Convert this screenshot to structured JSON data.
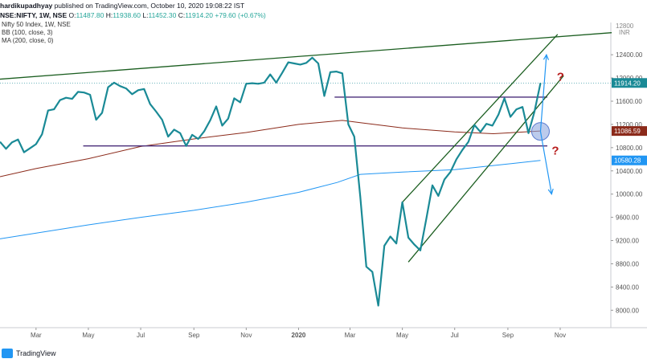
{
  "header": {
    "author": "hardikupadhyay",
    "published": "published on TradingView.com, October 10, 2020 19:08:22 IST",
    "symbol": "NSE:NIFTY, 1W, NSE",
    "ohlc_o_label": "O:",
    "ohlc_o": "11487.80",
    "ohlc_h_label": "H:",
    "ohlc_h": "11938.60",
    "ohlc_l_label": "L:",
    "ohlc_l": "11452.30",
    "ohlc_c_label": "C:",
    "ohlc_c": "11914.20",
    "ohlc_change": "+79.60 (+0.67%)",
    "legend_title": "Nifty 50 Index, 1W, NSE",
    "legend_bb": "BB (100, close, 3)",
    "legend_ma": "MA (200, close, 0)"
  },
  "footer": {
    "logo_text": "TradingView"
  },
  "colors": {
    "price": "#1a8a96",
    "ma": "#2196f3",
    "bb_basis": "#8b2a1a",
    "channel": "#1b5e20",
    "support": "#4a2e7a",
    "arrow": "#2196f3",
    "question": "#b71c1c",
    "highlight": "#8fa9e0"
  },
  "chart_data": {
    "type": "line",
    "title": "",
    "currency": "INR",
    "y_axis": {
      "ticks": [
        8000,
        8400,
        8800,
        9200,
        9600,
        10000,
        10400,
        10800,
        11200,
        11600,
        12000,
        12400
      ],
      "tick_labels": [
        "8000.00",
        "8400.00",
        "8800.00",
        "9200.00",
        "9600.00",
        "10000.00",
        "10400.00",
        "10800.00",
        "11200.00",
        "11600.00",
        "12000.00",
        "12400.00"
      ],
      "ylim": [
        7700,
        12900
      ],
      "top_partial_label": "12800"
    },
    "x_axis": {
      "labels": [
        {
          "label": "Mar",
          "date": "2019-03-01"
        },
        {
          "label": "May",
          "date": "2019-05-01"
        },
        {
          "label": "Jul",
          "date": "2019-07-01"
        },
        {
          "label": "Sep",
          "date": "2019-09-01"
        },
        {
          "label": "Nov",
          "date": "2019-11-01"
        },
        {
          "label": "2020",
          "date": "2020-01-01"
        },
        {
          "label": "Mar",
          "date": "2020-03-01"
        },
        {
          "label": "May",
          "date": "2020-05-01"
        },
        {
          "label": "Jul",
          "date": "2020-07-01"
        },
        {
          "label": "Sep",
          "date": "2020-09-01"
        },
        {
          "label": "Nov",
          "date": "2020-11-01"
        }
      ],
      "start": "2019-01-18",
      "end": "2020-12-30"
    },
    "price_labels": [
      {
        "value": 11914.2,
        "text": "11914.20",
        "color": "#1a8a96"
      },
      {
        "value": 11086.59,
        "text": "11086.59",
        "color": "#8b2a1a"
      },
      {
        "value": 10580.28,
        "text": "10580.28",
        "color": "#2196f3"
      }
    ],
    "series": [
      {
        "kind": "price",
        "points": [
          [
            "2019-01-18",
            10900
          ],
          [
            "2019-01-25",
            10780
          ],
          [
            "2019-02-01",
            10890
          ],
          [
            "2019-02-08",
            10940
          ],
          [
            "2019-02-15",
            10720
          ],
          [
            "2019-02-22",
            10790
          ],
          [
            "2019-03-01",
            10860
          ],
          [
            "2019-03-08",
            11030
          ],
          [
            "2019-03-15",
            11440
          ],
          [
            "2019-03-22",
            11460
          ],
          [
            "2019-03-29",
            11620
          ],
          [
            "2019-04-05",
            11660
          ],
          [
            "2019-04-12",
            11640
          ],
          [
            "2019-04-19",
            11760
          ],
          [
            "2019-04-26",
            11750
          ],
          [
            "2019-05-03",
            11710
          ],
          [
            "2019-05-10",
            11280
          ],
          [
            "2019-05-17",
            11400
          ],
          [
            "2019-05-24",
            11840
          ],
          [
            "2019-05-31",
            11920
          ],
          [
            "2019-06-07",
            11860
          ],
          [
            "2019-06-14",
            11820
          ],
          [
            "2019-06-21",
            11720
          ],
          [
            "2019-06-28",
            11790
          ],
          [
            "2019-07-05",
            11810
          ],
          [
            "2019-07-12",
            11550
          ],
          [
            "2019-07-19",
            11420
          ],
          [
            "2019-07-26",
            11280
          ],
          [
            "2019-08-02",
            10990
          ],
          [
            "2019-08-09",
            11110
          ],
          [
            "2019-08-16",
            11050
          ],
          [
            "2019-08-23",
            10830
          ],
          [
            "2019-08-30",
            11020
          ],
          [
            "2019-09-06",
            10950
          ],
          [
            "2019-09-13",
            11080
          ],
          [
            "2019-09-20",
            11270
          ],
          [
            "2019-09-27",
            11510
          ],
          [
            "2019-10-04",
            11180
          ],
          [
            "2019-10-11",
            11300
          ],
          [
            "2019-10-18",
            11650
          ],
          [
            "2019-10-25",
            11580
          ],
          [
            "2019-11-01",
            11900
          ],
          [
            "2019-11-08",
            11910
          ],
          [
            "2019-11-15",
            11900
          ],
          [
            "2019-11-22",
            11920
          ],
          [
            "2019-11-29",
            12060
          ],
          [
            "2019-12-06",
            11920
          ],
          [
            "2019-12-13",
            12090
          ],
          [
            "2019-12-20",
            12270
          ],
          [
            "2019-12-27",
            12250
          ],
          [
            "2020-01-03",
            12230
          ],
          [
            "2020-01-10",
            12260
          ],
          [
            "2020-01-17",
            12350
          ],
          [
            "2020-01-24",
            12250
          ],
          [
            "2020-01-31",
            11690
          ],
          [
            "2020-02-07",
            12100
          ],
          [
            "2020-02-14",
            12110
          ],
          [
            "2020-02-21",
            12080
          ],
          [
            "2020-02-28",
            11200
          ],
          [
            "2020-03-06",
            10990
          ],
          [
            "2020-03-13",
            9950
          ],
          [
            "2020-03-20",
            8750
          ],
          [
            "2020-03-27",
            8660
          ],
          [
            "2020-04-03",
            8080
          ],
          [
            "2020-04-10",
            9110
          ],
          [
            "2020-04-17",
            9270
          ],
          [
            "2020-04-24",
            9150
          ],
          [
            "2020-05-01",
            9860
          ],
          [
            "2020-05-08",
            9250
          ],
          [
            "2020-05-15",
            9130
          ],
          [
            "2020-05-22",
            9030
          ],
          [
            "2020-05-29",
            9580
          ],
          [
            "2020-06-05",
            10150
          ],
          [
            "2020-06-12",
            9970
          ],
          [
            "2020-06-19",
            10250
          ],
          [
            "2020-06-26",
            10380
          ],
          [
            "2020-07-03",
            10600
          ],
          [
            "2020-07-10",
            10760
          ],
          [
            "2020-07-17",
            10900
          ],
          [
            "2020-07-24",
            11190
          ],
          [
            "2020-07-31",
            11070
          ],
          [
            "2020-08-07",
            11210
          ],
          [
            "2020-08-14",
            11180
          ],
          [
            "2020-08-21",
            11370
          ],
          [
            "2020-08-28",
            11650
          ],
          [
            "2020-09-04",
            11330
          ],
          [
            "2020-09-11",
            11460
          ],
          [
            "2020-09-18",
            11500
          ],
          [
            "2020-09-25",
            11050
          ],
          [
            "2020-10-02",
            11420
          ],
          [
            "2020-10-09",
            11914
          ]
        ]
      },
      {
        "kind": "bb_basis",
        "points": [
          [
            "2019-01-18",
            10300
          ],
          [
            "2019-03-01",
            10440
          ],
          [
            "2019-05-01",
            10610
          ],
          [
            "2019-07-01",
            10820
          ],
          [
            "2019-09-01",
            10950
          ],
          [
            "2019-11-01",
            11060
          ],
          [
            "2020-01-01",
            11200
          ],
          [
            "2020-02-21",
            11270
          ],
          [
            "2020-03-13",
            11230
          ],
          [
            "2020-05-01",
            11140
          ],
          [
            "2020-07-01",
            11070
          ],
          [
            "2020-08-15",
            11040
          ],
          [
            "2020-10-09",
            11087
          ]
        ]
      },
      {
        "kind": "ma",
        "points": [
          [
            "2019-01-18",
            9230
          ],
          [
            "2019-05-01",
            9470
          ],
          [
            "2019-07-01",
            9600
          ],
          [
            "2019-09-01",
            9720
          ],
          [
            "2019-11-01",
            9860
          ],
          [
            "2020-01-01",
            10030
          ],
          [
            "2020-02-15",
            10200
          ],
          [
            "2020-03-13",
            10340
          ],
          [
            "2020-05-01",
            10380
          ],
          [
            "2020-07-01",
            10420
          ],
          [
            "2020-10-09",
            10580
          ]
        ]
      }
    ],
    "drawings": {
      "trendline": [
        [
          "2019-01-01",
          11960
        ],
        [
          "2020-12-31",
          12780
        ]
      ],
      "resistance": [
        [
          "2020-02-12",
          11670
        ],
        [
          "2020-10-17",
          11670
        ]
      ],
      "support": [
        [
          "2019-04-25",
          10830
        ],
        [
          "2020-10-17",
          10830
        ]
      ],
      "channel_upper": [
        [
          "2020-05-01",
          9860
        ],
        [
          "2020-10-29",
          12750
        ]
      ],
      "channel_lower": [
        [
          "2020-05-08",
          8830
        ],
        [
          "2020-11-05",
          12040
        ]
      ],
      "arrow_up": [
        [
          "2020-10-09",
          11080
        ],
        [
          "2020-10-16",
          12400
        ]
      ],
      "arrow_down": [
        [
          "2020-10-09",
          11080
        ],
        [
          "2020-10-22",
          10000
        ]
      ],
      "circle_center": [
        "2020-10-09",
        11080
      ],
      "question_marks": [
        {
          "date": "2020-10-28",
          "value": 11950,
          "text": "?"
        },
        {
          "date": "2020-10-22",
          "value": 10680,
          "text": "?"
        }
      ]
    }
  }
}
